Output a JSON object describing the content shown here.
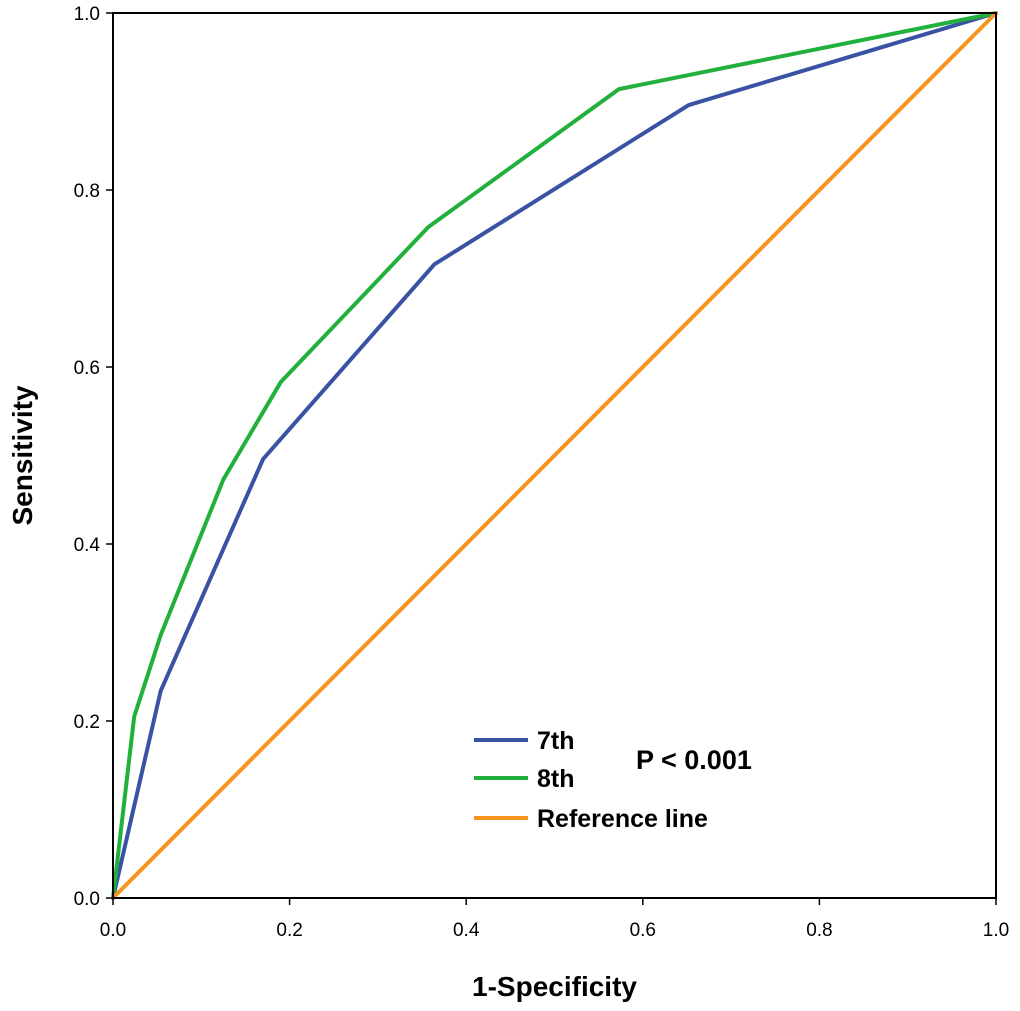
{
  "chart_data": {
    "type": "line",
    "xlabel": "1-Specificity",
    "ylabel": "Sensitivity",
    "xlim": [
      0,
      1
    ],
    "ylim": [
      0,
      1
    ],
    "x_ticks": [
      "0.0",
      "0.2",
      "0.4",
      "0.6",
      "0.8",
      "1.0"
    ],
    "y_ticks": [
      "0.0",
      "0.2",
      "0.4",
      "0.6",
      "0.8",
      "1.0"
    ],
    "grid": false,
    "legend_position": "bottom-center",
    "annotation": "P < 0.001",
    "series": [
      {
        "name": "7th",
        "color": "#3a52a3",
        "x": [
          0,
          0.054,
          0.17,
          0.364,
          0.652,
          1.0
        ],
        "y": [
          0,
          0.234,
          0.496,
          0.716,
          0.896,
          1.0
        ]
      },
      {
        "name": "8th",
        "color": "#22b03c",
        "x": [
          0,
          0.024,
          0.054,
          0.125,
          0.19,
          0.357,
          0.573,
          1.0
        ],
        "y": [
          0,
          0.205,
          0.297,
          0.473,
          0.583,
          0.758,
          0.914,
          1.0
        ]
      },
      {
        "name": "Reference line",
        "color": "#f7941d",
        "x": [
          0,
          1
        ],
        "y": [
          0,
          1
        ]
      }
    ]
  }
}
